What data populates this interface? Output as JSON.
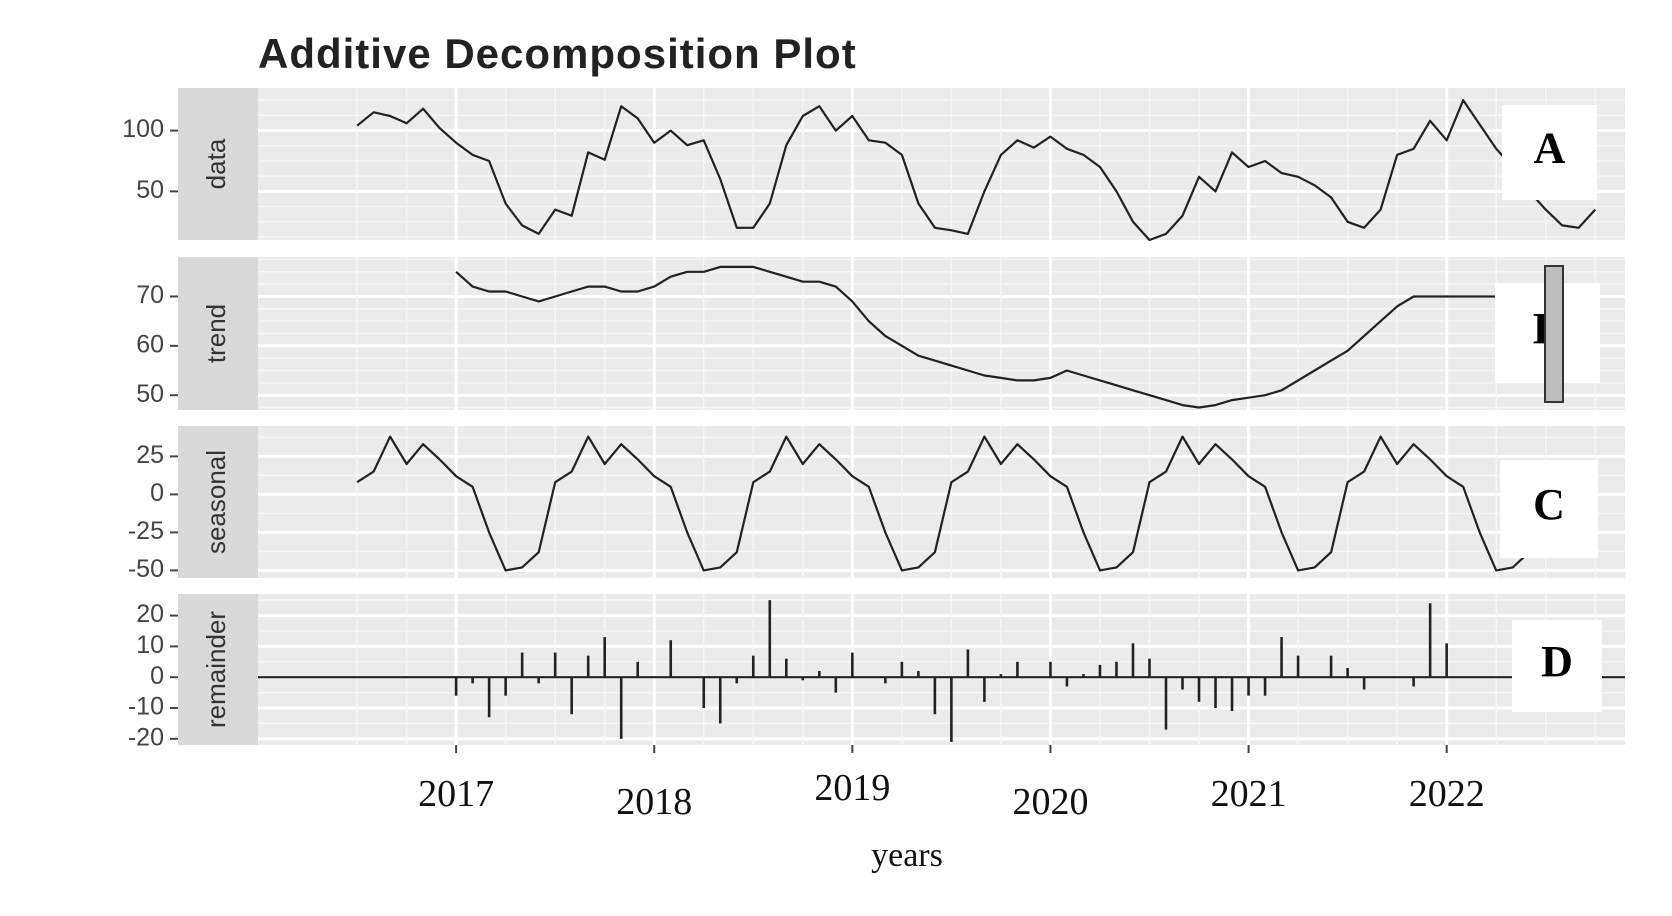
{
  "chart_data": {
    "type": "line",
    "title": "Additive Decomposition Plot",
    "xlabel": "years",
    "x_ticks": [
      "2017",
      "2018",
      "2019",
      "2020",
      "2021",
      "2022"
    ],
    "xlim": [
      2016.0,
      2022.9
    ],
    "grid": true,
    "panel_letter_color": "#000000",
    "panel_background": "#ebebeb",
    "strip_background": "#d9d9d9",
    "line_color": "#222222",
    "panels": [
      {
        "id": "data",
        "strip": "data",
        "letter": "A",
        "type": "line",
        "yticks": [
          50,
          100
        ],
        "ylim": [
          10,
          135
        ],
        "x_start": 2016.5,
        "step": 0.08333,
        "values": [
          104,
          115,
          112,
          106,
          118,
          102,
          90,
          80,
          75,
          40,
          22,
          15,
          35,
          30,
          82,
          76,
          120,
          110,
          90,
          100,
          88,
          92,
          60,
          20,
          20,
          40,
          88,
          112,
          120,
          100,
          112,
          92,
          90,
          80,
          40,
          20,
          18,
          15,
          50,
          80,
          92,
          86,
          95,
          85,
          80,
          70,
          50,
          25,
          10,
          15,
          30,
          62,
          50,
          82,
          70,
          75,
          65,
          62,
          55,
          45,
          25,
          20,
          35,
          80,
          85,
          108,
          92,
          125,
          105,
          85,
          70,
          50,
          35,
          22,
          20,
          35
        ]
      },
      {
        "id": "trend",
        "strip": "trend",
        "letter": "B",
        "type": "line",
        "yticks": [
          50,
          60,
          70
        ],
        "ylim": [
          47,
          78
        ],
        "x_start": 2017.0,
        "step": 0.08333,
        "values": [
          75,
          72,
          71,
          71,
          70,
          69,
          70,
          71,
          72,
          72,
          71,
          71,
          72,
          74,
          75,
          75,
          76,
          76,
          76,
          75,
          74,
          73,
          73,
          72,
          69,
          65,
          62,
          60,
          58,
          57,
          56,
          55,
          54,
          53.5,
          53,
          53,
          53.5,
          55,
          54,
          53,
          52,
          51,
          50,
          49,
          48,
          47.5,
          48,
          49,
          49.5,
          50,
          51,
          53,
          55,
          57,
          59,
          62,
          65,
          68,
          70,
          70,
          70,
          70,
          70,
          70,
          70
        ]
      },
      {
        "id": "seasonal",
        "strip": "seasonal",
        "letter": "C",
        "type": "line",
        "yticks": [
          -50,
          -25,
          0,
          25
        ],
        "ylim": [
          -55,
          45
        ],
        "x_start": 2016.5,
        "step": 0.08333,
        "pattern": [
          8,
          15,
          38,
          20,
          33,
          23,
          12,
          5,
          -25,
          -50,
          -48,
          -38
        ]
      },
      {
        "id": "remainder",
        "strip": "remainder",
        "letter": "D",
        "type": "bar",
        "yticks": [
          -20,
          -10,
          0,
          10,
          20
        ],
        "ylim": [
          -22,
          27
        ],
        "x_start": 2017.0,
        "step": 0.08333,
        "values": [
          -6,
          -2,
          -13,
          -6,
          8,
          -2,
          8,
          -12,
          7,
          13,
          -20,
          5,
          0,
          12,
          0,
          -10,
          -15,
          -2,
          7,
          25,
          6,
          -1,
          2,
          -5,
          8,
          0,
          -2,
          5,
          2,
          -12,
          -21,
          9,
          -8,
          1,
          5,
          0,
          5,
          -3,
          1,
          4,
          5,
          11,
          6,
          -17,
          -4,
          -8,
          -10,
          -11,
          -6,
          -6,
          13,
          7,
          0,
          7,
          3,
          -4,
          0,
          0,
          -3,
          24,
          11
        ]
      }
    ]
  }
}
